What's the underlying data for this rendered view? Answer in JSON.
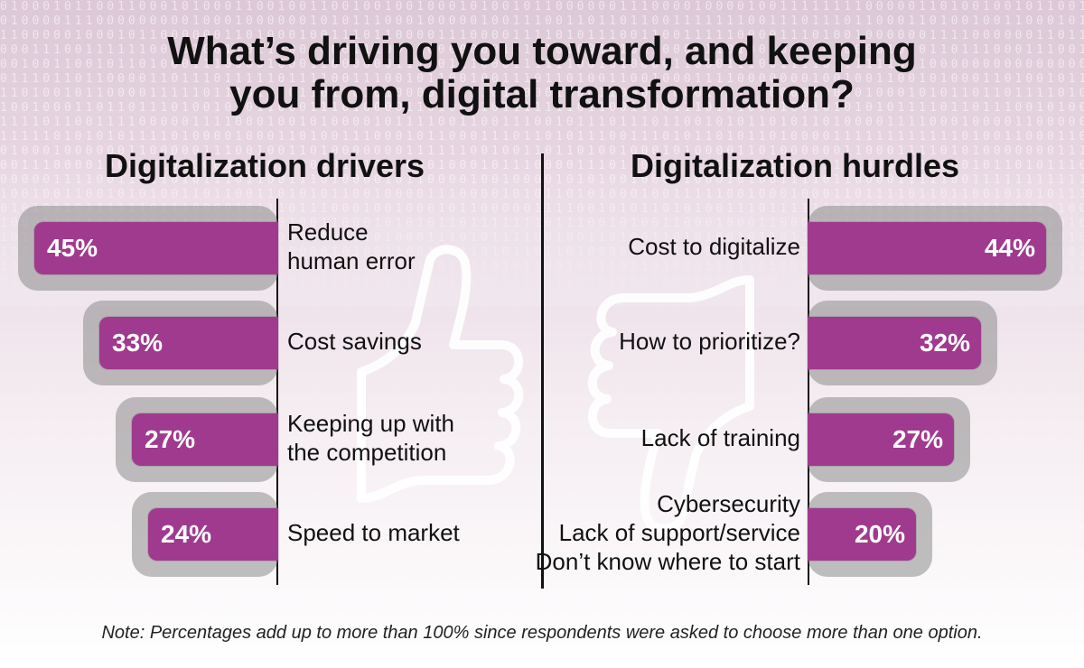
{
  "title_line1": "What’s driving you toward, and keeping",
  "title_line2": "you from, digital transformation?",
  "note": "Note: Percentages add up to more than 100% since respondents were asked to choose more than one option.",
  "colors": {
    "bar": "#a03a8e",
    "shadow": "#8c8c8c",
    "text": "#111111"
  },
  "icons": {
    "drivers": "thumbs-up-icon",
    "hurdles": "thumbs-down-icon"
  },
  "chart_data": [
    {
      "type": "bar",
      "title": "Digitalization drivers",
      "orientation": "horizontal",
      "categories": [
        "Reduce human error",
        "Cost savings",
        "Keeping up with the competition",
        "Speed to market"
      ],
      "label_lines": [
        [
          "Reduce",
          "human error"
        ],
        [
          "Cost savings"
        ],
        [
          "Keeping up with",
          "the competition"
        ],
        [
          "Speed to market"
        ]
      ],
      "values": [
        45,
        33,
        27,
        24
      ],
      "value_labels": [
        "45%",
        "33%",
        "27%",
        "24%"
      ],
      "unit": "%",
      "xlim": [
        0,
        50
      ]
    },
    {
      "type": "bar",
      "title": "Digitalization hurdles",
      "orientation": "horizontal",
      "categories": [
        "Cost to digitalize",
        "How to prioritize?",
        "Lack of training",
        "Cybersecurity / Lack of support/service / Don’t know where to start"
      ],
      "label_lines": [
        [
          "Cost to digitalize"
        ],
        [
          "How to prioritize?"
        ],
        [
          "Lack of training"
        ],
        [
          "Cybersecurity",
          "Lack of support/service",
          "Don’t know where to start"
        ]
      ],
      "values": [
        44,
        32,
        27,
        20
      ],
      "value_labels": [
        "44%",
        "32%",
        "27%",
        "20%"
      ],
      "unit": "%",
      "xlim": [
        0,
        50
      ]
    }
  ]
}
